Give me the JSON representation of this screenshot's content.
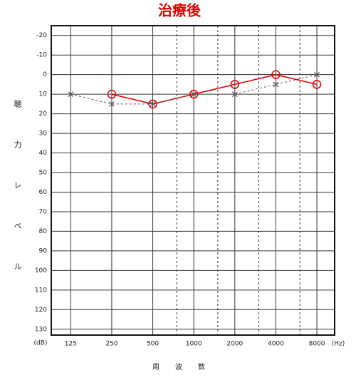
{
  "chart_data": {
    "type": "line",
    "title": "治療後",
    "x_label": "周波数",
    "y_label": "聴力レベル",
    "y_unit": "(dB)",
    "x_unit": "(Hz)",
    "x": [
      125,
      250,
      500,
      1000,
      2000,
      4000,
      8000
    ],
    "xscale": "log",
    "xlim": [
      90,
      10800
    ],
    "xticks": [
      125,
      250,
      500,
      1000,
      2000,
      4000,
      8000
    ],
    "minor_xgrid": [
      750,
      1500,
      3000,
      6000
    ],
    "ylim": [
      -25,
      133
    ],
    "y_inverted": true,
    "yticks": [
      -20,
      -10,
      0,
      10,
      20,
      30,
      40,
      50,
      60,
      70,
      80,
      90,
      100,
      110,
      120,
      130
    ],
    "grid": true,
    "series": [
      {
        "color": "#e00000",
        "marker": "circle",
        "dash": false,
        "values": [
          null,
          10,
          15,
          10,
          5,
          0,
          5
        ]
      },
      {
        "color": "#555555",
        "marker": "x",
        "dash": true,
        "values": [
          10,
          15,
          15,
          10,
          10,
          5,
          0
        ]
      }
    ]
  }
}
